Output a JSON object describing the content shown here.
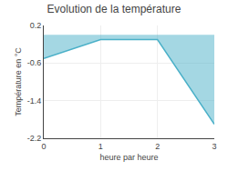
{
  "chart_data": {
    "type": "area",
    "title": "Evolution de la température",
    "xlabel": "heure par heure",
    "ylabel": "Température en °C",
    "x": [
      0,
      1,
      2,
      3
    ],
    "values": [
      -0.5,
      -0.1,
      -0.1,
      -1.9
    ],
    "color": "#4ab0c8",
    "xlim": [
      0,
      3
    ],
    "xticks": [
      0,
      1,
      2,
      3
    ],
    "ylim": [
      -2.2,
      0.2
    ],
    "yticks": [
      0.2,
      -0.6,
      -1.4,
      -2.2
    ],
    "grid": true
  }
}
